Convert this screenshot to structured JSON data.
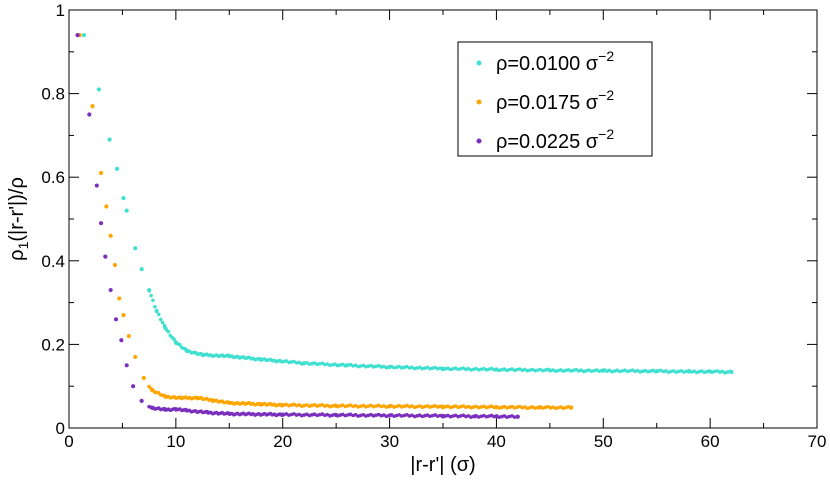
{
  "chart_data": {
    "type": "scatter",
    "title": "",
    "xlabel": "|r-r'|  (σ)",
    "ylabel_main": "ρ",
    "ylabel_sub": "1",
    "ylabel_rest": "(|r-r'|)/ρ",
    "xlim": [
      0,
      70
    ],
    "ylim": [
      0,
      1
    ],
    "x_ticks": [
      0,
      10,
      20,
      30,
      40,
      50,
      60,
      70
    ],
    "x_tick_labels": [
      "0",
      "10",
      "20",
      "30",
      "40",
      "50",
      "60",
      "70"
    ],
    "y_ticks": [
      0,
      0.2,
      0.4,
      0.6,
      0.8,
      1
    ],
    "y_tick_labels": [
      "0",
      "0.2",
      "0.4",
      "0.6",
      "0.8",
      "1"
    ],
    "grid": false,
    "legend_position": "top-right",
    "series": [
      {
        "name": "ρ=0.0100 σ",
        "label_main": "ρ=0.0100 σ",
        "label_sup": "−2",
        "color": "#40e0d0",
        "x_max": 62,
        "points": [
          [
            1.4,
            0.94
          ],
          [
            2.8,
            0.81
          ],
          [
            3.8,
            0.69
          ],
          [
            4.5,
            0.62
          ],
          [
            5.1,
            0.55
          ],
          [
            5.4,
            0.52
          ],
          [
            6.2,
            0.43
          ],
          [
            6.8,
            0.38
          ],
          [
            7.5,
            0.33
          ],
          [
            8.2,
            0.28
          ],
          [
            9.0,
            0.24
          ],
          [
            10.0,
            0.205
          ],
          [
            11.0,
            0.185
          ],
          [
            12.5,
            0.175
          ],
          [
            15.0,
            0.172
          ],
          [
            18.0,
            0.164
          ],
          [
            22.0,
            0.155
          ],
          [
            26.0,
            0.15
          ],
          [
            30.0,
            0.146
          ],
          [
            35.0,
            0.142
          ],
          [
            40.0,
            0.14
          ],
          [
            45.0,
            0.138
          ],
          [
            50.0,
            0.137
          ],
          [
            55.0,
            0.136
          ],
          [
            58.0,
            0.135
          ],
          [
            60.0,
            0.135
          ],
          [
            62.0,
            0.134
          ]
        ]
      },
      {
        "name": "ρ=0.0175 σ",
        "label_main": "ρ=0.0175 σ",
        "label_sup": "−2",
        "color": "#ffa500",
        "x_max": 47,
        "points": [
          [
            1.0,
            0.94
          ],
          [
            2.2,
            0.77
          ],
          [
            3.0,
            0.61
          ],
          [
            3.5,
            0.53
          ],
          [
            3.9,
            0.46
          ],
          [
            4.3,
            0.39
          ],
          [
            4.7,
            0.31
          ],
          [
            5.1,
            0.27
          ],
          [
            5.6,
            0.22
          ],
          [
            6.2,
            0.17
          ],
          [
            7.0,
            0.12
          ],
          [
            7.8,
            0.09
          ],
          [
            9.0,
            0.075
          ],
          [
            10.5,
            0.072
          ],
          [
            12.0,
            0.072
          ],
          [
            13.5,
            0.066
          ],
          [
            15.0,
            0.06
          ],
          [
            18.0,
            0.057
          ],
          [
            20.0,
            0.055
          ],
          [
            25.0,
            0.053
          ],
          [
            30.0,
            0.052
          ],
          [
            35.0,
            0.051
          ],
          [
            40.0,
            0.05
          ],
          [
            44.0,
            0.049
          ],
          [
            47.0,
            0.049
          ]
        ]
      },
      {
        "name": "ρ=0.0225 σ",
        "label_main": "ρ=0.0225 σ",
        "label_sup": "−2",
        "color": "#7b2fbe",
        "x_max": 42,
        "points": [
          [
            0.8,
            0.94
          ],
          [
            1.9,
            0.75
          ],
          [
            2.6,
            0.58
          ],
          [
            3.0,
            0.49
          ],
          [
            3.4,
            0.41
          ],
          [
            3.9,
            0.33
          ],
          [
            4.4,
            0.26
          ],
          [
            4.9,
            0.21
          ],
          [
            5.4,
            0.15
          ],
          [
            6.0,
            0.1
          ],
          [
            6.8,
            0.065
          ],
          [
            7.8,
            0.048
          ],
          [
            9.0,
            0.044
          ],
          [
            10.0,
            0.045
          ],
          [
            11.0,
            0.042
          ],
          [
            13.0,
            0.037
          ],
          [
            15.0,
            0.034
          ],
          [
            20.0,
            0.032
          ],
          [
            25.0,
            0.031
          ],
          [
            30.0,
            0.03
          ],
          [
            35.0,
            0.029
          ],
          [
            38.0,
            0.028
          ],
          [
            40.0,
            0.028
          ],
          [
            42.0,
            0.027
          ]
        ]
      }
    ]
  }
}
